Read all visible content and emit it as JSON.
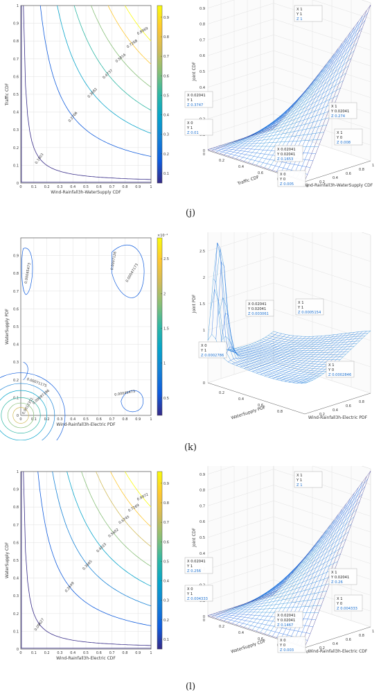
{
  "colors": {
    "parula": [
      "#352a87",
      "#0f5cdd",
      "#1481d6",
      "#06a4ca",
      "#2eb7a4",
      "#87bf77",
      "#d1bb59",
      "#fec832",
      "#f9fb0e"
    ]
  },
  "panels": [
    {
      "label": "(j)",
      "contour": {
        "xlabel": "Wind-Rainfall3h-WaterSupply CDF",
        "ylabel": "Traffic CDF",
        "xticks": [
          "0",
          "0.1",
          "0.2",
          "0.3",
          "0.4",
          "0.5",
          "0.6",
          "0.7",
          "0.8",
          "0.9",
          "1"
        ],
        "yticks": [
          "0",
          "0.1",
          "0.2",
          "0.3",
          "0.4",
          "0.5",
          "0.6",
          "0.7",
          "0.8",
          "0.9",
          "1"
        ],
        "colorbar_ticks": [
          "0.1",
          "0.2",
          "0.3",
          "0.4",
          "0.5",
          "0.6",
          "0.7",
          "0.8",
          "0.9"
        ],
        "colorbar_exp": "",
        "levels": [
          "0.1003",
          "0.2706",
          "0.3682",
          "0.4737",
          "0.5816",
          "0.7268",
          "0.8969"
        ]
      },
      "surface": {
        "zlabel": "Joint CDF",
        "xlabel": "Traffic CDF",
        "ylabel": "Wind-Rainfall3h-WaterSupply CDF",
        "zticks": [
          "0",
          "0.1",
          "0.2",
          "0.3",
          "0.4",
          "0.5",
          "0.6",
          "0.7",
          "0.8",
          "0.9",
          "1"
        ],
        "xticks": [
          "0.8",
          "0.6",
          "0.4",
          "0.2",
          "0"
        ],
        "yticks": [
          "0",
          "0.2",
          "0.4",
          "0.6",
          "0.8",
          "1"
        ],
        "zexp": "",
        "datatips": [
          {
            "l1": "X 1",
            "l2": "Y 1",
            "l3": "Z 1"
          },
          {
            "l1": "X 0.02041",
            "l2": "Y 1",
            "l3": "Z 0.3747"
          },
          {
            "l1": "X 1",
            "l2": "Y 0.02041",
            "l3": "Z 0.274"
          },
          {
            "l1": "X 0",
            "l2": "Y 1",
            "l3": "Z 0.01"
          },
          {
            "l1": "X 1",
            "l2": "Y 0",
            "l3": "Z 0.008"
          },
          {
            "l1": "X 0.02041",
            "l2": "Y 0.02041",
            "l3": "Z 0.1653"
          },
          {
            "l1": "X 0",
            "l2": "Y 0",
            "l3": "Z 0.005"
          }
        ]
      }
    },
    {
      "label": "(k)",
      "contour": {
        "xlabel": "Wind-Rainfall3h-Electric PDF",
        "ylabel": "WaterSupply PDF",
        "xticks": [
          "0",
          "0.1",
          "0.2",
          "0.3",
          "0.4",
          "0.5",
          "0.6",
          "0.7",
          "0.8",
          "0.9",
          "1"
        ],
        "yticks": [
          "0",
          "0.1",
          "0.2",
          "0.3",
          "0.4",
          "0.5",
          "0.6",
          "0.7",
          "0.8",
          "0.9"
        ],
        "colorbar_ticks": [
          "0.5",
          "1",
          "1.5",
          "2",
          "2.5"
        ],
        "colorbar_exp": "×10⁻³",
        "levels": [
          "0.00045473",
          "0.00047173",
          "0.0007126",
          "0.00045473",
          "0.00071175",
          "0.00097396",
          "0.0012351"
        ]
      },
      "surface": {
        "zlabel": "Joint PDF",
        "xlabel": "WaterSupply PDF",
        "ylabel": "Wind-Rainfall3h-Electric PDF",
        "zticks": [
          "0",
          "0.5",
          "1",
          "1.5",
          "2",
          "2.5",
          "3"
        ],
        "xticks": [
          "0.8",
          "0.6",
          "0.4",
          "0.2"
        ],
        "yticks": [
          "0.2",
          "0.4",
          "0.6",
          "0.8"
        ],
        "zexp": "×10⁻³",
        "datatips": [
          {
            "l1": "X 0.02041",
            "l2": "Y 0.02041",
            "l3": "Z 0.003061"
          },
          {
            "l1": "X 1",
            "l2": "Y 1",
            "l3": "Z 0.0005154"
          },
          {
            "l1": "X 0",
            "l2": "Y 1",
            "l3": "Z 0.0002786"
          },
          {
            "l1": "X 1",
            "l2": "Y 0",
            "l3": "Z 0.0002846"
          }
        ]
      }
    },
    {
      "label": "(l)",
      "contour": {
        "xlabel": "Wind-Rainfall3h-Electric CDF",
        "ylabel": "WaterSupply CDF",
        "xticks": [
          "0",
          "0.1",
          "0.2",
          "0.3",
          "0.4",
          "0.5",
          "0.6",
          "0.7",
          "0.8",
          "0.9",
          "1"
        ],
        "yticks": [
          "0",
          "0.1",
          "0.2",
          "0.3",
          "0.4",
          "0.5",
          "0.6",
          "0.7",
          "0.8",
          "0.9",
          "1"
        ],
        "colorbar_ticks": [
          "0.1",
          "0.2",
          "0.3",
          "0.4",
          "0.5",
          "0.6",
          "0.7",
          "0.8",
          "0.9"
        ],
        "colorbar_exp": "",
        "levels": [
          "0.09627",
          "0.2649",
          "0.3665",
          "0.4615",
          "0.5602",
          "0.6745",
          "0.7269",
          "0.8972"
        ]
      },
      "surface": {
        "zlabel": "Joint CDF",
        "xlabel": "WaterSupply CDF",
        "ylabel": "Wind-Rainfall3h-Electric CDF",
        "zticks": [
          "0",
          "0.1",
          "0.2",
          "0.3",
          "0.4",
          "0.5",
          "0.6",
          "0.7",
          "0.8",
          "0.9",
          "1"
        ],
        "xticks": [
          "0.8",
          "0.6",
          "0.4",
          "0.2",
          "0"
        ],
        "yticks": [
          "0",
          "0.2",
          "0.4",
          "0.6",
          "0.8",
          "1"
        ],
        "zexp": "",
        "datatips": [
          {
            "l1": "X 1",
            "l2": "Y 1",
            "l3": "Z 1"
          },
          {
            "l1": "X 0.02041",
            "l2": "Y 1",
            "l3": "Z 0.256"
          },
          {
            "l1": "X 1",
            "l2": "Y 0.02041",
            "l3": "Z 0.26"
          },
          {
            "l1": "X 0",
            "l2": "Y 1",
            "l3": "Z 0.004333"
          },
          {
            "l1": "X 1",
            "l2": "Y 0",
            "l3": "Z 0.004333"
          },
          {
            "l1": "X 0.02041",
            "l2": "Y 0.02041",
            "l3": "Z 0.1467"
          },
          {
            "l1": "X 0",
            "l2": "Y 0",
            "l3": "Z 0.003"
          }
        ]
      }
    }
  ],
  "chart_data": [
    {
      "type": "contour",
      "title": "",
      "xlabel": "Wind-Rainfall3h-WaterSupply CDF",
      "ylabel": "Traffic CDF",
      "xlim": [
        0,
        1
      ],
      "ylim": [
        0,
        1
      ],
      "grid": true,
      "colorbar": {
        "ticks": [
          0.1,
          0.2,
          0.3,
          0.4,
          0.5,
          0.6,
          0.7,
          0.8,
          0.9
        ],
        "range": [
          0.1,
          0.95
        ]
      },
      "contour_levels": [
        0.1003,
        0.2706,
        0.3682,
        0.4737,
        0.5816,
        0.7268,
        0.8969
      ]
    },
    {
      "type": "surface",
      "title": "",
      "zlabel": "Joint CDF",
      "xlabel": "Traffic CDF",
      "ylabel": "Wind-Rainfall3h-WaterSupply CDF",
      "zlim": [
        0,
        1
      ],
      "points": [
        {
          "x": 1,
          "y": 1,
          "z": 1
        },
        {
          "x": 0.02041,
          "y": 1,
          "z": 0.3747
        },
        {
          "x": 1,
          "y": 0.02041,
          "z": 0.274
        },
        {
          "x": 0,
          "y": 1,
          "z": 0.01
        },
        {
          "x": 1,
          "y": 0,
          "z": 0.008
        },
        {
          "x": 0.02041,
          "y": 0.02041,
          "z": 0.1653
        },
        {
          "x": 0,
          "y": 0,
          "z": 0.005
        }
      ]
    },
    {
      "type": "contour",
      "title": "",
      "xlabel": "Wind-Rainfall3h-Electric PDF",
      "ylabel": "WaterSupply PDF",
      "xlim": [
        0,
        1
      ],
      "ylim": [
        0,
        1
      ],
      "grid": true,
      "colorbar": {
        "ticks": [
          0.0005,
          0.001,
          0.0015,
          0.002,
          0.0025
        ],
        "range": [
          0.0004,
          0.0028
        ]
      },
      "contour_levels": [
        0.00045473,
        0.00047173,
        0.0007126,
        0.00071175,
        0.00097396,
        0.0012351
      ]
    },
    {
      "type": "surface",
      "title": "",
      "zlabel": "Joint PDF",
      "xlabel": "WaterSupply PDF",
      "ylabel": "Wind-Rainfall3h-Electric PDF",
      "zlim": [
        0,
        0.003
      ],
      "points": [
        {
          "x": 0.02041,
          "y": 0.02041,
          "z": 0.003061
        },
        {
          "x": 1,
          "y": 1,
          "z": 0.0005154
        },
        {
          "x": 0,
          "y": 1,
          "z": 0.0002786
        },
        {
          "x": 1,
          "y": 0,
          "z": 0.0002846
        }
      ]
    },
    {
      "type": "contour",
      "title": "",
      "xlabel": "Wind-Rainfall3h-Electric CDF",
      "ylabel": "WaterSupply CDF",
      "xlim": [
        0,
        1
      ],
      "ylim": [
        0,
        1
      ],
      "grid": true,
      "colorbar": {
        "ticks": [
          0.1,
          0.2,
          0.3,
          0.4,
          0.5,
          0.6,
          0.7,
          0.8,
          0.9
        ],
        "range": [
          0.1,
          0.95
        ]
      },
      "contour_levels": [
        0.09627,
        0.2649,
        0.3665,
        0.4615,
        0.5602,
        0.6745,
        0.7269,
        0.8972
      ]
    },
    {
      "type": "surface",
      "title": "",
      "zlabel": "Joint CDF",
      "xlabel": "WaterSupply CDF",
      "ylabel": "Wind-Rainfall3h-Electric CDF",
      "zlim": [
        0,
        1
      ],
      "points": [
        {
          "x": 1,
          "y": 1,
          "z": 1
        },
        {
          "x": 0.02041,
          "y": 1,
          "z": 0.256
        },
        {
          "x": 1,
          "y": 0.02041,
          "z": 0.26
        },
        {
          "x": 0,
          "y": 1,
          "z": 0.004333
        },
        {
          "x": 1,
          "y": 0,
          "z": 0.004333
        },
        {
          "x": 0.02041,
          "y": 0.02041,
          "z": 0.1467
        },
        {
          "x": 0,
          "y": 0,
          "z": 0.003
        }
      ]
    }
  ]
}
